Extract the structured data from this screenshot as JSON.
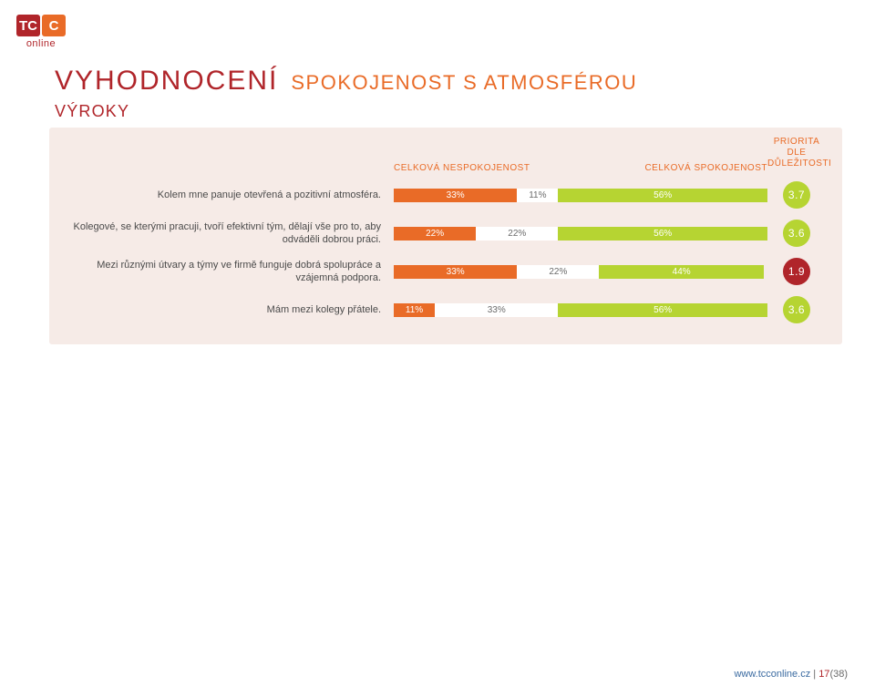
{
  "logo": {
    "left_text": "TC",
    "right_text": "C",
    "left_bg": "#b0252a",
    "right_bg": "#e96b27",
    "sub": "online",
    "sub_color": "#b0252a"
  },
  "heading": {
    "title": "VYHODNOCENÍ",
    "title_color": "#b0252a",
    "subtitle": "SPOKOJENOST S ATMOSFÉROU",
    "subtitle_color": "#e96b27",
    "section": "VÝROKY",
    "section_color": "#b0252a"
  },
  "panel": {
    "background_color": "#f6ebe7",
    "axis_left_label": "CELKOVÁ NESPOKOJENOST",
    "axis_right_label": "CELKOVÁ SPOKOJENOST",
    "axis_label_color": "#e96b27",
    "priority_label_line1": "PRIORITA DLE",
    "priority_label_line2": "DŮLEŽITOSTI",
    "priority_label_color": "#e96b27",
    "neg_color": "#e96b27",
    "mid_bg_color": "#ffffff",
    "mid_text_color": "#6b6b6b",
    "pos_color": "#b6d432",
    "label_text_color": "#4a4a4a",
    "rows": [
      {
        "label": "Kolem mne panuje otevřená a pozitivní atmosféra.",
        "neg": 33,
        "mid": 11,
        "pos": 56,
        "neg_label": "33%",
        "mid_label": "11%",
        "pos_label": "56%",
        "priority": "3.7",
        "priority_bg": "#b6d432"
      },
      {
        "label": "Kolegové, se kterými pracuji, tvoří efektivní tým, dělají vše pro to, aby odváděli dobrou práci.",
        "neg": 22,
        "mid": 22,
        "pos": 56,
        "neg_label": "22%",
        "mid_label": "22%",
        "pos_label": "56%",
        "priority": "3.6",
        "priority_bg": "#b6d432"
      },
      {
        "label": "Mezi různými útvary a týmy ve firmě funguje dobrá spolupráce a vzájemná podpora.",
        "neg": 33,
        "mid": 22,
        "pos": 44,
        "neg_label": "33%",
        "mid_label": "22%",
        "pos_label": "44%",
        "priority": "1.9",
        "priority_bg": "#b0252a"
      },
      {
        "label": "Mám mezi kolegy přátele.",
        "neg": 11,
        "mid": 33,
        "pos": 56,
        "neg_label": "11%",
        "mid_label": "33%",
        "pos_label": "56%",
        "priority": "3.6",
        "priority_bg": "#b6d432"
      }
    ]
  },
  "footer": {
    "url": "www.tcconline.cz",
    "url_color": "#3a6aa0",
    "separator": " | ",
    "page_current": "17",
    "page_total": "(38)",
    "page_current_color": "#b0252a",
    "page_total_color": "#6b6b6b"
  }
}
